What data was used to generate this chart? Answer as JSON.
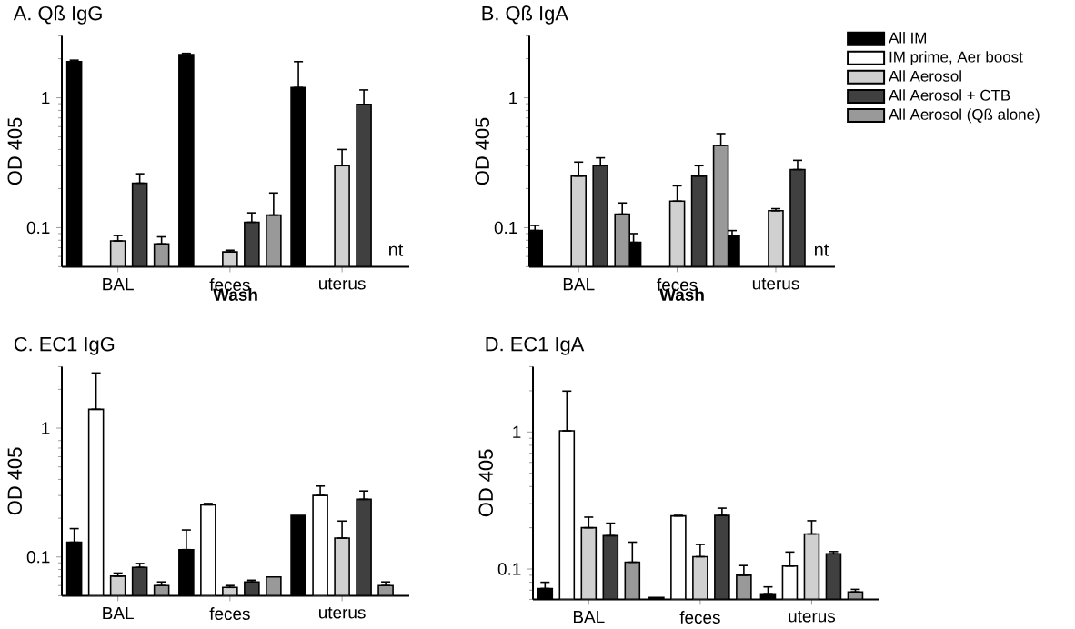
{
  "chart_data": [
    {
      "type": "bar",
      "title": "A. Qß IgG",
      "xlabel": "Wash",
      "ylabel": "OD 405",
      "log": true,
      "ylim": [
        0.05,
        3
      ],
      "yticks": [
        0.1,
        1
      ],
      "categories": [
        "BAL",
        "feces",
        "uterus"
      ],
      "annotations": [
        "nt"
      ],
      "series": [
        {
          "color": "#000000",
          "values": [
            1.9,
            2.15,
            1.2
          ],
          "errors": [
            [
              1.9,
              1.95
            ],
            [
              2.15,
              2.2
            ],
            [
              1.2,
              1.9
            ]
          ]
        },
        {
          "color": "#ffffff",
          "values": [
            null,
            null,
            null
          ],
          "errors": [
            null,
            null,
            null
          ]
        },
        {
          "color": "#d0d0d0",
          "values": [
            0.079,
            0.065,
            0.3
          ],
          "errors": [
            [
              0.079,
              0.087
            ],
            [
              0.065,
              0.067
            ],
            [
              0.3,
              0.4
            ]
          ]
        },
        {
          "color": "#404040",
          "values": [
            0.22,
            0.11,
            0.89
          ],
          "errors": [
            [
              0.22,
              0.26
            ],
            [
              0.11,
              0.13
            ],
            [
              0.89,
              1.15
            ]
          ]
        },
        {
          "color": "#999999",
          "values": [
            0.075,
            0.125,
            null
          ],
          "errors": [
            [
              0.075,
              0.085
            ],
            [
              0.125,
              0.185
            ],
            null
          ]
        }
      ]
    },
    {
      "type": "bar",
      "title": "B. Qß IgA",
      "xlabel": "Wash",
      "ylabel": "OD 405",
      "log": true,
      "ylim": [
        0.05,
        3
      ],
      "yticks": [
        0.1,
        1
      ],
      "categories": [
        "BAL",
        "feces",
        "uterus"
      ],
      "annotations": [
        "nt"
      ],
      "legend": "right",
      "series": [
        {
          "name": "All IM",
          "color": "#000000",
          "values": [
            0.095,
            0.077,
            0.087
          ],
          "errors": [
            [
              0.095,
              0.104
            ],
            [
              0.077,
              0.09
            ],
            [
              0.087,
              0.095
            ]
          ]
        },
        {
          "name": "IM prime, Aer boost",
          "color": "#ffffff",
          "values": [
            null,
            null,
            null
          ],
          "errors": [
            null,
            null,
            null
          ]
        },
        {
          "name": "All Aerosol",
          "color": "#d0d0d0",
          "values": [
            0.25,
            0.16,
            0.135
          ],
          "errors": [
            [
              0.25,
              0.32
            ],
            [
              0.16,
              0.21
            ],
            [
              0.135,
              0.14
            ]
          ]
        },
        {
          "name": "All Aerosol + CTB",
          "color": "#404040",
          "values": [
            0.3,
            0.25,
            0.28
          ],
          "errors": [
            [
              0.3,
              0.345
            ],
            [
              0.25,
              0.3
            ],
            [
              0.28,
              0.33
            ]
          ]
        },
        {
          "name": "All Aerosol (Qß alone)",
          "color": "#999999",
          "values": [
            0.127,
            0.43,
            null
          ],
          "errors": [
            [
              0.127,
              0.155
            ],
            [
              0.43,
              0.53
            ],
            null
          ]
        }
      ]
    },
    {
      "type": "bar",
      "title": "C. EC1 IgG",
      "ylabel": "OD 405",
      "log": true,
      "ylim": [
        0.05,
        3
      ],
      "yticks": [
        0.1,
        1
      ],
      "categories": [
        "BAL",
        "feces",
        "uterus"
      ],
      "series": [
        {
          "color": "#000000",
          "values": [
            0.13,
            0.114,
            0.21
          ],
          "errors": [
            [
              0.13,
              0.166
            ],
            [
              0.114,
              0.162
            ],
            null
          ]
        },
        {
          "color": "#ffffff",
          "values": [
            1.4,
            0.254,
            0.3
          ],
          "errors": [
            [
              1.4,
              2.68
            ],
            [
              0.254,
              0.26
            ],
            [
              0.3,
              0.355
            ]
          ]
        },
        {
          "color": "#d0d0d0",
          "values": [
            0.071,
            0.058,
            0.14
          ],
          "errors": [
            [
              0.071,
              0.075
            ],
            [
              0.058,
              0.06
            ],
            [
              0.14,
              0.19
            ]
          ]
        },
        {
          "color": "#404040",
          "values": [
            0.083,
            0.064,
            0.28
          ],
          "errors": [
            [
              0.083,
              0.089
            ],
            [
              0.064,
              0.066
            ],
            [
              0.28,
              0.325
            ]
          ]
        },
        {
          "color": "#999999",
          "values": [
            0.06,
            0.07,
            0.06
          ],
          "errors": [
            [
              0.06,
              0.064
            ],
            null,
            [
              0.06,
              0.064
            ]
          ]
        }
      ]
    },
    {
      "type": "bar",
      "title": "D. EC1 IgA",
      "ylabel": "OD 405",
      "log": true,
      "ylim": [
        0.06,
        3
      ],
      "yticks": [
        0.1,
        1
      ],
      "categories": [
        "BAL",
        "feces",
        "uterus"
      ],
      "series": [
        {
          "color": "#000000",
          "values": [
            0.072,
            0.062,
            0.066
          ],
          "errors": [
            [
              0.072,
              0.08
            ],
            null,
            [
              0.066,
              0.074
            ]
          ]
        },
        {
          "color": "#ffffff",
          "values": [
            1.02,
            0.244,
            0.105
          ],
          "errors": [
            [
              1.02,
              1.99
            ],
            [
              0.244,
              0.246
            ],
            [
              0.105,
              0.133
            ]
          ]
        },
        {
          "color": "#d0d0d0",
          "values": [
            0.2,
            0.123,
            0.18
          ],
          "errors": [
            [
              0.2,
              0.239
            ],
            [
              0.123,
              0.151
            ],
            [
              0.18,
              0.225
            ]
          ]
        },
        {
          "color": "#404040",
          "values": [
            0.175,
            0.246,
            0.129
          ],
          "errors": [
            [
              0.175,
              0.216
            ],
            [
              0.246,
              0.278
            ],
            [
              0.129,
              0.134
            ]
          ]
        },
        {
          "color": "#999999",
          "values": [
            0.112,
            0.09,
            0.068
          ],
          "errors": [
            [
              0.112,
              0.157
            ],
            [
              0.09,
              0.106
            ],
            [
              0.068,
              0.071
            ]
          ]
        }
      ]
    }
  ]
}
